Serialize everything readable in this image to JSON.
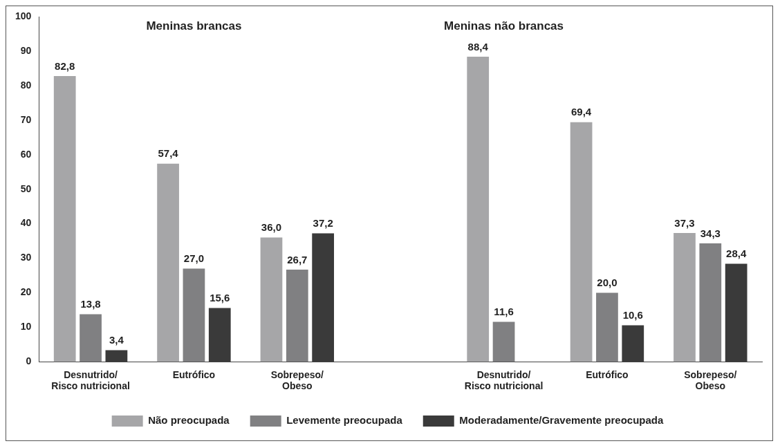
{
  "chart_data": {
    "type": "bar",
    "categories": [
      "Desnutrido/\nRisco nutricional",
      "Eutrófico",
      "Sobrepeso/\nObeso",
      null,
      "Desnutrido/\nRisco nutricional",
      "Eutrófico",
      "Sobrepeso/\nObeso"
    ],
    "series": [
      {
        "name": "Não preocupada",
        "color": "#a6a6a8",
        "values": [
          82.8,
          57.4,
          36.0,
          null,
          88.4,
          69.4,
          37.3
        ],
        "value_labels": [
          "82,8",
          "57,4",
          "36,0",
          null,
          "88,4",
          "69,4",
          "37,3"
        ]
      },
      {
        "name": "Levemente preocupada",
        "color": "#808082",
        "values": [
          13.8,
          27.0,
          26.7,
          null,
          11.6,
          20.0,
          34.3
        ],
        "value_labels": [
          "13,8",
          "27,0",
          "26,7",
          null,
          "11,6",
          "20,0",
          "34,3"
        ]
      },
      {
        "name": "Moderadamente/Gravemente preocupada",
        "color": "#3a3a3a",
        "values": [
          3.4,
          15.6,
          37.2,
          null,
          null,
          10.6,
          28.4
        ],
        "value_labels": [
          "3,4",
          "15,6",
          "37,2",
          null,
          null,
          "10,6",
          "28,4"
        ]
      }
    ],
    "annotations": [
      "Meninas brancas",
      "Meninas não brancas"
    ],
    "ylim": [
      0,
      100
    ],
    "yticks": [
      0,
      10,
      20,
      30,
      40,
      50,
      60,
      70,
      80,
      90,
      100
    ],
    "grid": false,
    "legend": "bottom"
  }
}
